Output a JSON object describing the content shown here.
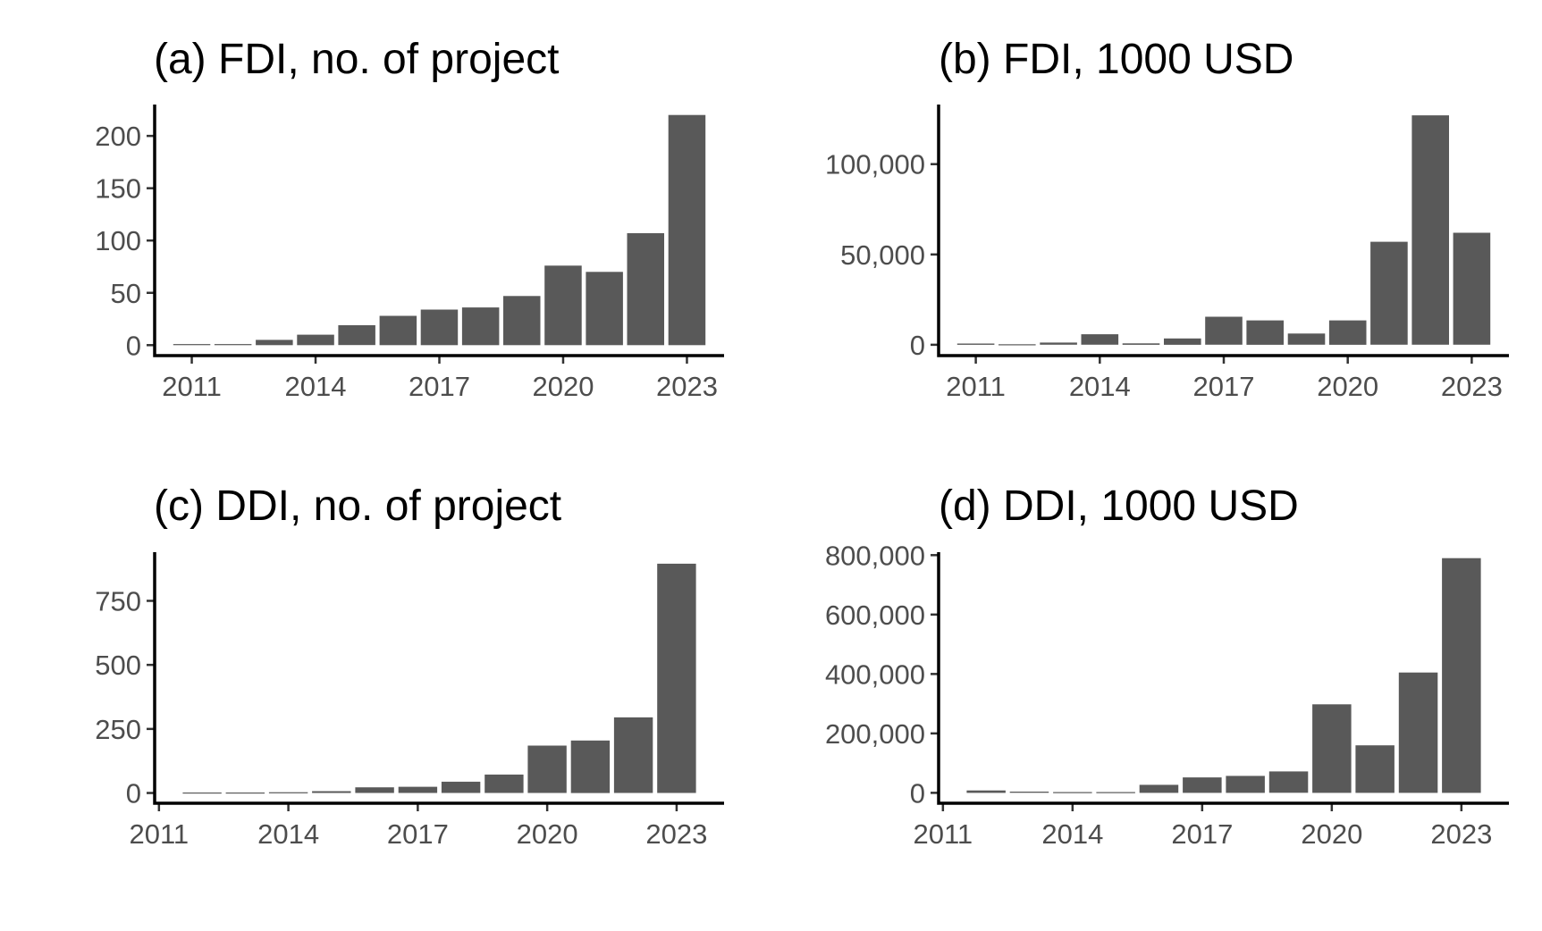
{
  "colors": {
    "bar_fill": "#595959",
    "axis": "#000000",
    "tick_label": "#4d4d4d",
    "title": "#000000"
  },
  "chart_data": [
    {
      "id": "a",
      "type": "bar",
      "title": "(a) FDI, no. of project",
      "xlabel": "",
      "ylabel": "",
      "x": [
        2011,
        2012,
        2013,
        2014,
        2015,
        2016,
        2017,
        2018,
        2019,
        2020,
        2021,
        2022,
        2023
      ],
      "values": [
        1,
        1,
        5,
        10,
        19,
        28,
        34,
        36,
        47,
        76,
        70,
        107,
        220
      ],
      "xlim": [
        2010.1,
        2023.9
      ],
      "ylim": [
        -10,
        230
      ],
      "xticks": [
        2011,
        2014,
        2017,
        2020,
        2023
      ],
      "xtick_labels": [
        "2011",
        "2014",
        "2017",
        "2020",
        "2023"
      ],
      "yticks": [
        0,
        50,
        100,
        150,
        200
      ],
      "ytick_labels": [
        "0",
        "50",
        "100",
        "150",
        "200"
      ],
      "grid": false,
      "legend": "none"
    },
    {
      "id": "b",
      "type": "bar",
      "title": "(b) FDI, 1000 USD",
      "xlabel": "",
      "ylabel": "",
      "x": [
        2011,
        2012,
        2013,
        2014,
        2015,
        2016,
        2017,
        2018,
        2019,
        2020,
        2021,
        2022,
        2023
      ],
      "values": [
        700,
        300,
        1200,
        5800,
        800,
        3500,
        15500,
        13500,
        6200,
        13500,
        57000,
        127000,
        62000
      ],
      "xlim": [
        2010.1,
        2023.9
      ],
      "ylim": [
        -6000,
        133000
      ],
      "xticks": [
        2011,
        2014,
        2017,
        2020,
        2023
      ],
      "xtick_labels": [
        "2011",
        "2014",
        "2017",
        "2020",
        "2023"
      ],
      "yticks": [
        0,
        50000,
        100000
      ],
      "ytick_labels": [
        "0",
        "50,000",
        "100,000"
      ],
      "grid": false,
      "legend": "none"
    },
    {
      "id": "c",
      "type": "bar",
      "title": "(c) DDI, no. of project",
      "xlabel": "",
      "ylabel": "",
      "x": [
        2012,
        2013,
        2014,
        2015,
        2016,
        2017,
        2018,
        2019,
        2020,
        2021,
        2022,
        2023
      ],
      "values": [
        2,
        2,
        3,
        7,
        22,
        24,
        44,
        72,
        185,
        205,
        295,
        895
      ],
      "xlim": [
        2010.9,
        2024.1
      ],
      "ylim": [
        -40,
        940
      ],
      "xticks": [
        2011,
        2014,
        2017,
        2020,
        2023
      ],
      "xtick_labels": [
        "2011",
        "2014",
        "2017",
        "2020",
        "2023"
      ],
      "yticks": [
        0,
        250,
        500,
        750
      ],
      "ytick_labels": [
        "0",
        "250",
        "500",
        "750"
      ],
      "grid": false,
      "legend": "none"
    },
    {
      "id": "d",
      "type": "bar",
      "title": "(d) DDI, 1000 USD",
      "xlabel": "",
      "ylabel": "",
      "x": [
        2012,
        2013,
        2014,
        2015,
        2016,
        2017,
        2018,
        2019,
        2020,
        2021,
        2022,
        2023
      ],
      "values": [
        8000,
        4000,
        2500,
        2500,
        27000,
        52000,
        57000,
        72000,
        298000,
        160000,
        405000,
        790000
      ],
      "xlim": [
        2010.9,
        2024.1
      ],
      "ylim": [
        -35000,
        810000
      ],
      "xticks": [
        2011,
        2014,
        2017,
        2020,
        2023
      ],
      "xtick_labels": [
        "2011",
        "2014",
        "2017",
        "2020",
        "2023"
      ],
      "yticks": [
        0,
        200000,
        400000,
        600000,
        800000
      ],
      "ytick_labels": [
        "0",
        "200,000",
        "400,000",
        "600,000",
        "800,000"
      ],
      "grid": false,
      "legend": "none"
    }
  ]
}
